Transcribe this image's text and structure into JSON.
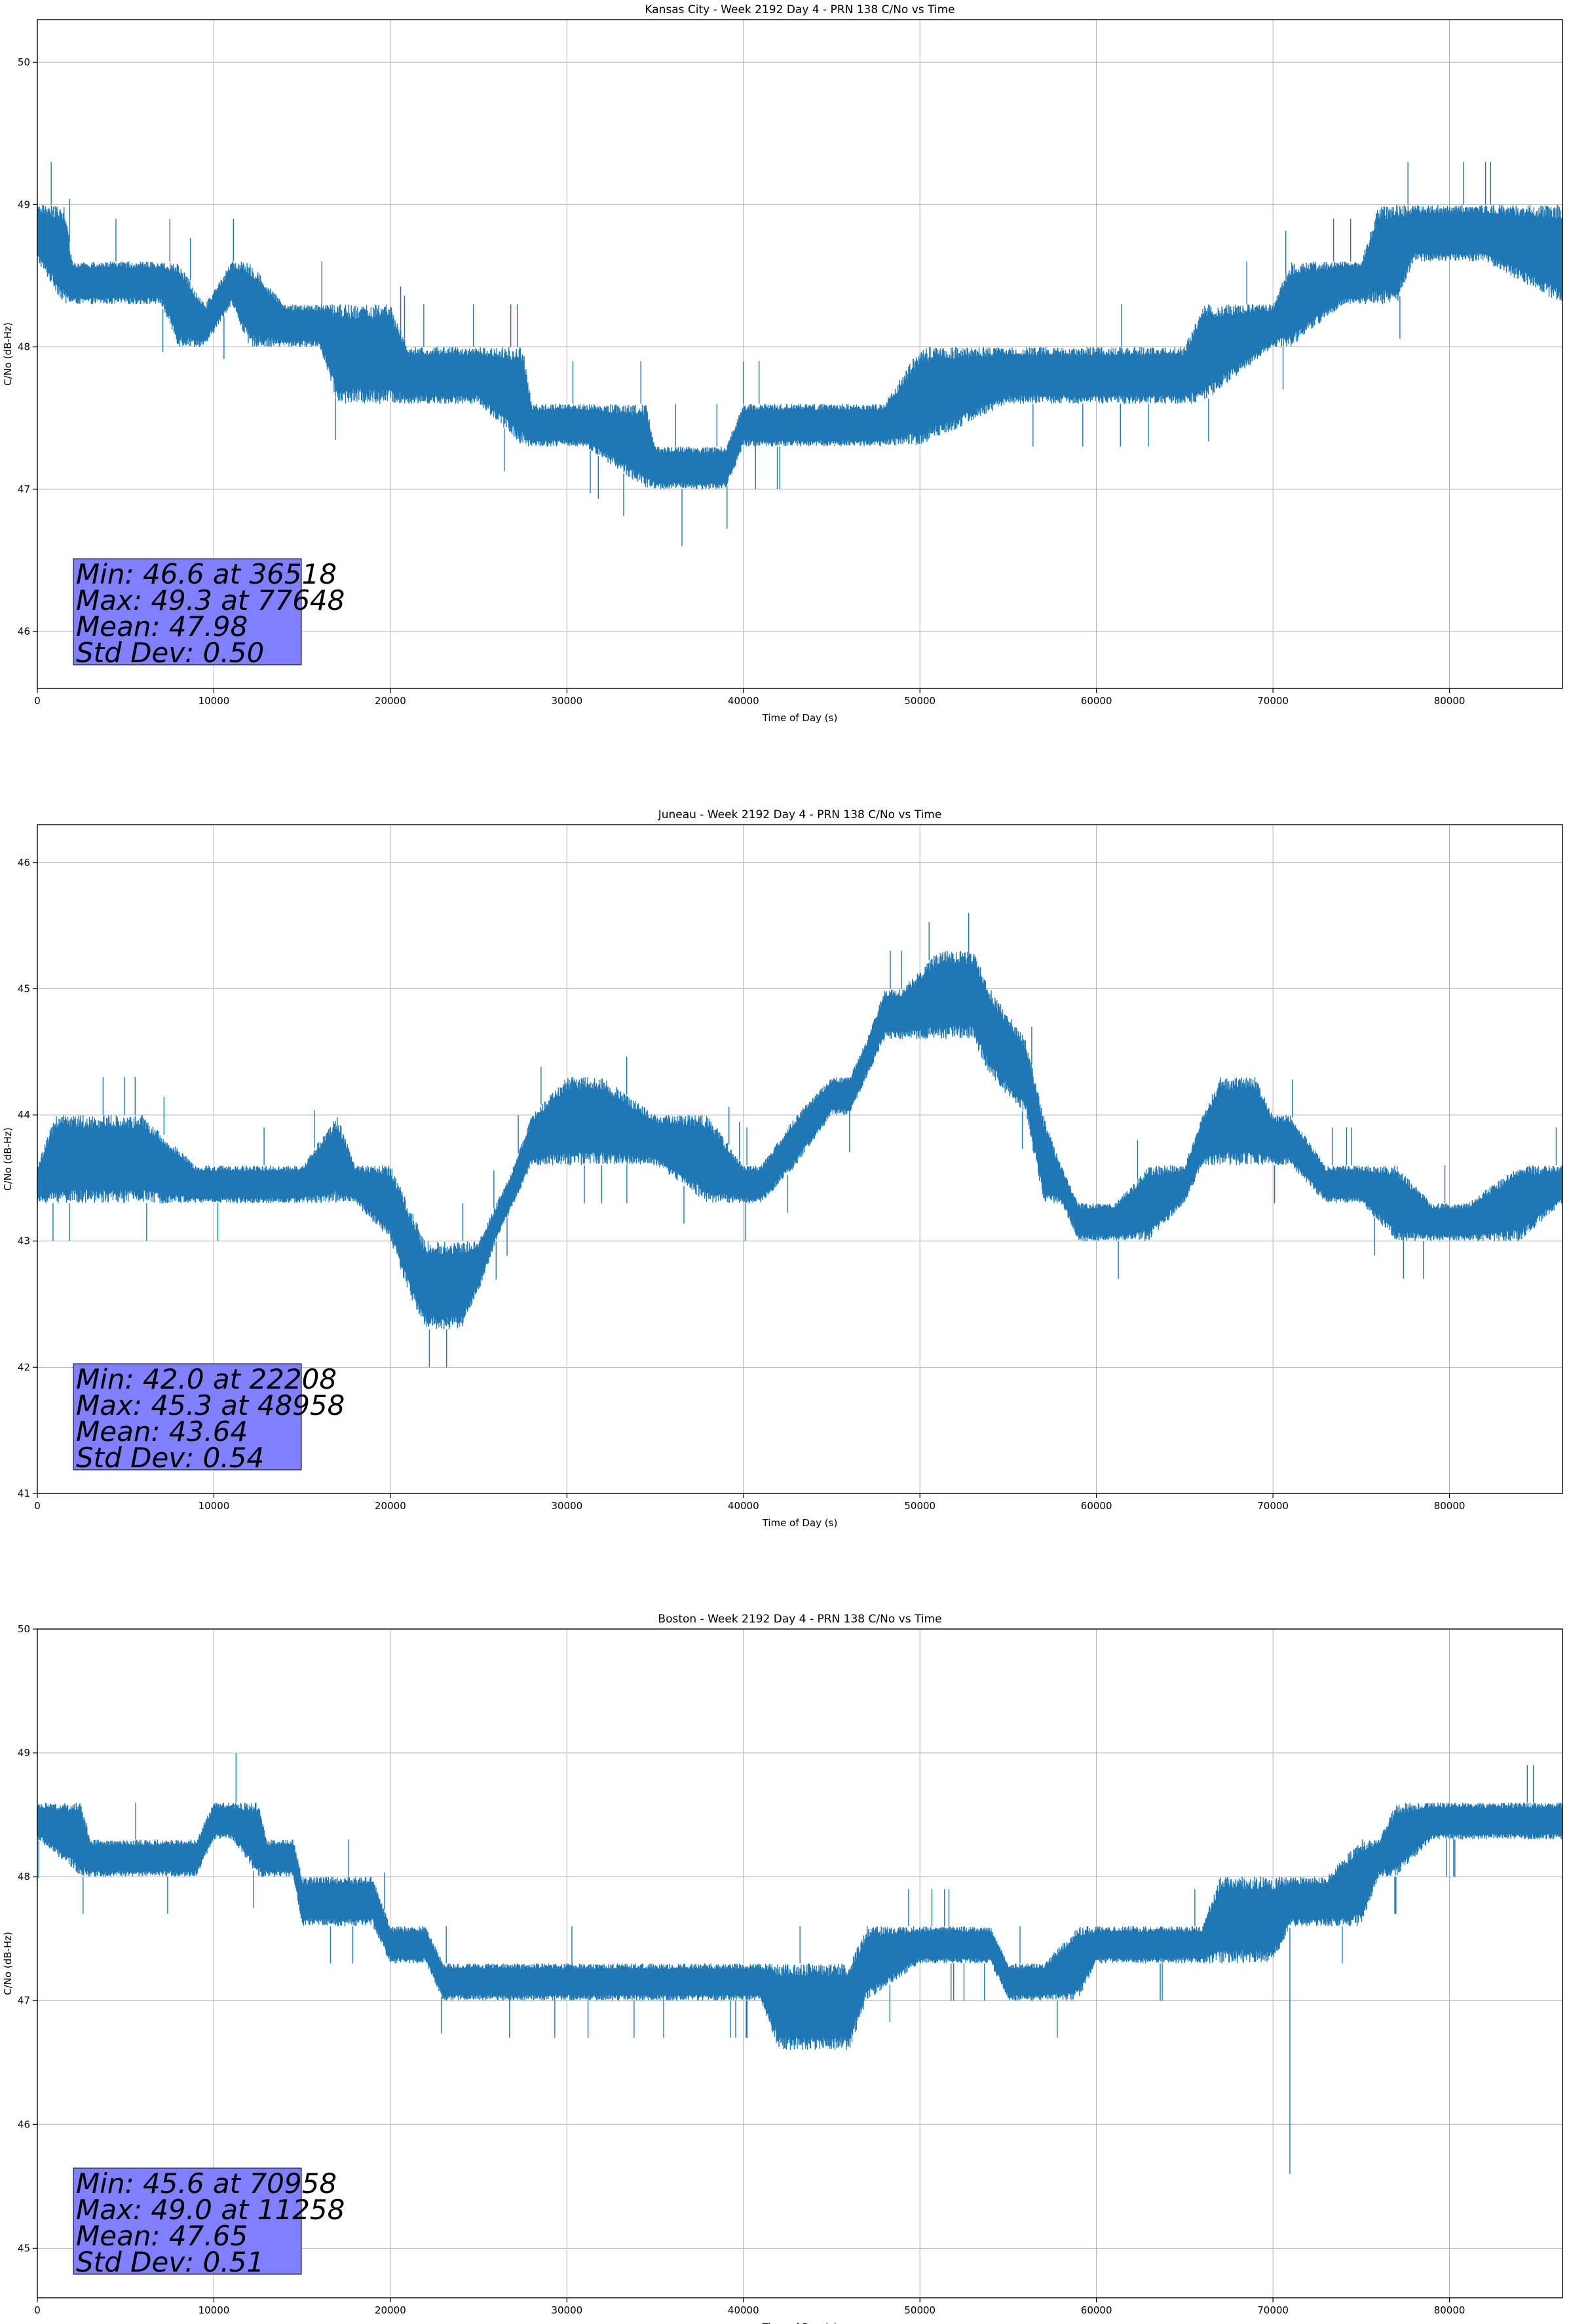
{
  "colors": {
    "series": "#1f77b4",
    "stats_box_fill": "#8080ff",
    "grid": "#b0b0b0",
    "axis": "#000000"
  },
  "chart_data": [
    {
      "type": "line",
      "title": "Kansas City - Week 2192 Day 4 - PRN 138 C/No vs Time",
      "xlabel": "Time of Day (s)",
      "ylabel": "C/No (dB-Hz)",
      "xlim": [
        0,
        86400
      ],
      "ylim": [
        45.6,
        50.3
      ],
      "xticks": [
        0,
        10000,
        20000,
        30000,
        40000,
        50000,
        60000,
        70000,
        80000
      ],
      "yticks": [
        46,
        47,
        48,
        49,
        50
      ],
      "grid": true,
      "stats": [
        "Min: 46.6 at 36518",
        "Max: 49.3 at 77648",
        "Mean: 47.98",
        "Std Dev: 0.50"
      ],
      "stats_placement": "bottom-left",
      "envelope": {
        "x": [
          0,
          1500,
          2000,
          5000,
          7000,
          8000,
          9500,
          11000,
          12000,
          14000,
          16000,
          17000,
          18000,
          19000,
          20000,
          21000,
          22000,
          23000,
          25000,
          27500,
          28000,
          31000,
          34500,
          35000,
          37000,
          39000,
          40000,
          44000,
          48000,
          50000,
          55000,
          60000,
          65000,
          66000,
          70000,
          71000,
          74000,
          75000,
          76000,
          77000,
          78000,
          82000,
          86400
        ],
        "low": [
          48.6,
          48.3,
          48.3,
          48.3,
          48.3,
          48.0,
          48.0,
          48.3,
          48.0,
          48.0,
          48.0,
          47.6,
          47.6,
          47.6,
          47.6,
          47.6,
          47.6,
          47.6,
          47.6,
          47.3,
          47.3,
          47.3,
          47.0,
          47.0,
          47.0,
          47.0,
          47.3,
          47.3,
          47.3,
          47.3,
          47.6,
          47.6,
          47.6,
          47.6,
          48.0,
          48.0,
          48.3,
          48.3,
          48.3,
          48.3,
          48.6,
          48.6,
          48.3
        ],
        "high": [
          49.0,
          49.0,
          48.6,
          48.6,
          48.6,
          48.6,
          48.3,
          48.6,
          48.6,
          48.3,
          48.3,
          48.3,
          48.3,
          48.3,
          48.3,
          48.0,
          48.0,
          48.0,
          48.0,
          48.0,
          47.6,
          47.6,
          47.6,
          47.3,
          47.3,
          47.3,
          47.6,
          47.6,
          47.6,
          48.0,
          48.0,
          48.0,
          48.0,
          48.3,
          48.3,
          48.6,
          48.6,
          48.6,
          49.0,
          49.0,
          49.0,
          49.0,
          49.0
        ]
      },
      "extremes": [
        [
          36518,
          46.6
        ],
        [
          77648,
          49.3
        ]
      ]
    },
    {
      "type": "line",
      "title": "Juneau - Week 2192 Day 4 - PRN 138 C/No vs Time",
      "xlabel": "Time of Day (s)",
      "ylabel": "C/No (dB-Hz)",
      "xlim": [
        0,
        86400
      ],
      "ylim": [
        41.0,
        46.3
      ],
      "xticks": [
        0,
        10000,
        20000,
        30000,
        40000,
        50000,
        60000,
        70000,
        80000
      ],
      "yticks": [
        41,
        42,
        43,
        44,
        45,
        46
      ],
      "grid": true,
      "stats": [
        "Min: 42.0 at 22208",
        "Max: 45.3 at 48958",
        "Mean: 43.64",
        "Std Dev: 0.54"
      ],
      "stats_placement": "bottom-left",
      "envelope": {
        "x": [
          0,
          1000,
          3000,
          6000,
          9000,
          12000,
          15000,
          17000,
          18000,
          20000,
          21000,
          22000,
          24000,
          25000,
          26000,
          27000,
          28000,
          30000,
          32000,
          35000,
          38000,
          40000,
          41000,
          43000,
          45000,
          46000,
          47000,
          48000,
          49000,
          51000,
          53000,
          54000,
          56000,
          57000,
          58000,
          59000,
          61000,
          63000,
          65000,
          66000,
          67000,
          69000,
          70000,
          71000,
          73000,
          75000,
          77000,
          79000,
          81000,
          84000,
          86400
        ],
        "low": [
          43.3,
          43.3,
          43.3,
          43.3,
          43.3,
          43.3,
          43.3,
          43.3,
          43.3,
          43.0,
          42.6,
          42.3,
          42.3,
          42.6,
          43.0,
          43.3,
          43.6,
          43.6,
          43.6,
          43.6,
          43.3,
          43.3,
          43.3,
          43.6,
          44.0,
          44.0,
          44.3,
          44.6,
          44.6,
          44.6,
          44.6,
          44.3,
          44.0,
          43.3,
          43.3,
          43.0,
          43.0,
          43.0,
          43.3,
          43.6,
          43.6,
          43.6,
          43.6,
          43.6,
          43.3,
          43.3,
          43.0,
          43.0,
          43.0,
          43.0,
          43.3
        ],
        "high": [
          43.6,
          44.0,
          44.0,
          44.0,
          43.6,
          43.6,
          43.6,
          44.0,
          43.6,
          43.6,
          43.3,
          43.0,
          43.0,
          43.0,
          43.3,
          43.6,
          44.0,
          44.3,
          44.3,
          44.0,
          44.0,
          43.6,
          43.6,
          44.0,
          44.3,
          44.3,
          44.6,
          45.0,
          45.0,
          45.3,
          45.3,
          45.0,
          44.6,
          44.0,
          43.6,
          43.3,
          43.3,
          43.6,
          43.6,
          44.0,
          44.3,
          44.3,
          44.0,
          44.0,
          43.6,
          43.6,
          43.6,
          43.3,
          43.3,
          43.6,
          43.6
        ]
      },
      "extremes": [
        [
          22208,
          42.0
        ],
        [
          48958,
          45.3
        ]
      ]
    },
    {
      "type": "line",
      "title": "Boston - Week 2192 Day 4 - PRN 138 C/No vs Time",
      "xlabel": "Time of Day (s)",
      "ylabel": "C/No (dB-Hz)",
      "xlim": [
        0,
        86400
      ],
      "ylim": [
        44.6,
        50.0
      ],
      "xticks": [
        0,
        10000,
        20000,
        30000,
        40000,
        50000,
        60000,
        70000,
        80000
      ],
      "yticks": [
        45,
        46,
        47,
        48,
        49,
        50
      ],
      "grid": true,
      "stats": [
        "Min: 45.6 at 70958",
        "Max: 49.0 at 11258",
        "Mean: 47.65",
        "Std Dev: 0.51"
      ],
      "stats_placement": "bottom-left",
      "envelope": {
        "x": [
          0,
          2500,
          3000,
          6000,
          8000,
          9000,
          10000,
          11000,
          12500,
          13000,
          14500,
          15000,
          17000,
          19000,
          20000,
          22000,
          23000,
          24000,
          26000,
          28000,
          31000,
          37000,
          41000,
          42000,
          46000,
          47000,
          50000,
          54000,
          55000,
          57000,
          59000,
          60000,
          63000,
          66000,
          67000,
          70000,
          71000,
          73000,
          75000,
          76000,
          77000,
          79000,
          80000,
          84000,
          86400
        ],
        "low": [
          48.3,
          48.0,
          48.0,
          48.0,
          48.0,
          48.0,
          48.3,
          48.3,
          48.0,
          48.0,
          48.0,
          47.6,
          47.6,
          47.6,
          47.3,
          47.3,
          47.0,
          47.0,
          47.0,
          47.0,
          47.0,
          47.0,
          47.0,
          46.6,
          46.6,
          47.0,
          47.3,
          47.3,
          47.0,
          47.0,
          47.0,
          47.3,
          47.3,
          47.3,
          47.3,
          47.3,
          47.6,
          47.6,
          47.6,
          48.0,
          48.0,
          48.3,
          48.3,
          48.3,
          48.3
        ],
        "high": [
          48.6,
          48.6,
          48.3,
          48.3,
          48.3,
          48.3,
          48.6,
          48.6,
          48.6,
          48.3,
          48.3,
          48.0,
          48.0,
          48.0,
          47.6,
          47.6,
          47.3,
          47.3,
          47.3,
          47.3,
          47.3,
          47.3,
          47.3,
          47.3,
          47.3,
          47.6,
          47.6,
          47.6,
          47.3,
          47.3,
          47.6,
          47.6,
          47.6,
          47.6,
          48.0,
          48.0,
          48.0,
          48.0,
          48.3,
          48.3,
          48.6,
          48.6,
          48.6,
          48.6,
          48.6
        ]
      },
      "extremes": [
        [
          70958,
          45.6
        ],
        [
          11258,
          49.0
        ]
      ]
    }
  ]
}
